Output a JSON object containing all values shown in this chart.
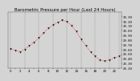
{
  "title": "Barometric Pressure per Hour (Last 24 Hours)",
  "hours": [
    0,
    1,
    2,
    3,
    4,
    5,
    6,
    7,
    8,
    9,
    10,
    11,
    12,
    13,
    14,
    15,
    16,
    17,
    18,
    19,
    20,
    21,
    22,
    23
  ],
  "pressure": [
    29.62,
    29.58,
    29.55,
    29.6,
    29.68,
    29.75,
    29.85,
    29.95,
    30.05,
    30.12,
    30.18,
    30.22,
    30.2,
    30.1,
    29.98,
    29.82,
    29.68,
    29.55,
    29.45,
    29.38,
    29.35,
    29.38,
    29.42,
    29.45
  ],
  "line_color": "#ff0000",
  "marker_color": "#111111",
  "background_color": "#d4d4d4",
  "plot_bg_color": "#d4d4d4",
  "grid_color": "#888888",
  "ylim_min": 29.2,
  "ylim_max": 30.4,
  "ytick_values": [
    29.2,
    29.3,
    29.4,
    29.5,
    29.6,
    29.7,
    29.8,
    29.9,
    30.0,
    30.1,
    30.2,
    30.3
  ],
  "title_fontsize": 4.0,
  "tick_fontsize": 2.8,
  "vgrid_positions": [
    0,
    3,
    6,
    9,
    12,
    15,
    18,
    21,
    23
  ]
}
